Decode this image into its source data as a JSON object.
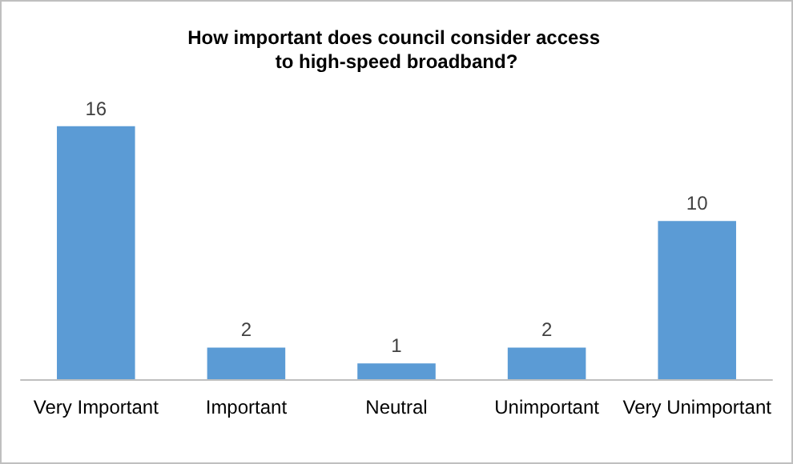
{
  "chart_data": {
    "type": "bar",
    "title": "How important does council consider access to high-speed broadband?",
    "categories": [
      "Very Important",
      "Important",
      "Neutral",
      "Unimportant",
      "Very Unimportant"
    ],
    "values": [
      16,
      2,
      1,
      2,
      10
    ],
    "color": "#5b9bd5",
    "data_labels": true,
    "grid": false,
    "legend": false
  }
}
